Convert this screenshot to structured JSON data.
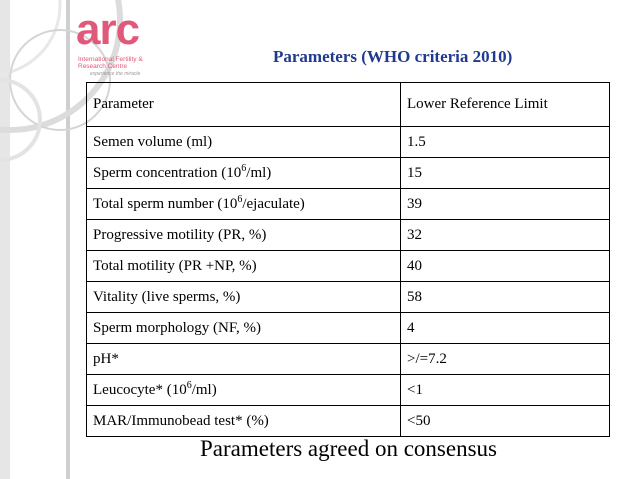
{
  "logo": {
    "mark": "arc",
    "line1": "International Fertility &",
    "line2": "Research Centre",
    "tagline": "experience the miracle"
  },
  "title": "Parameters (WHO criteria 2010)",
  "table": {
    "headers": [
      "Parameter",
      "Lower Reference Limit"
    ],
    "rows": [
      {
        "param": "Semen volume (ml)",
        "limit": "1.5"
      },
      {
        "param_pre": "Sperm concentration (10",
        "param_sup": "6",
        "param_post": "/ml)",
        "limit": "15"
      },
      {
        "param_pre": "Total sperm number (10",
        "param_sup": "6",
        "param_post": "/ejaculate)",
        "limit": "39"
      },
      {
        "param": "Progressive motility (PR, %)",
        "limit": "32"
      },
      {
        "param": "Total motility (PR +NP, %)",
        "limit": "40"
      },
      {
        "param": "Vitality (live sperms, %)",
        "limit": "58"
      },
      {
        "param": "Sperm morphology (NF, %)",
        "limit": "4"
      },
      {
        "param": "pH*",
        "limit": ">/=7.2"
      },
      {
        "param_pre": "Leucocyte* (10",
        "param_sup": "6",
        "param_post": "/ml)",
        "limit": "<1"
      },
      {
        "param": "MAR/Immunobead test* (%)",
        "limit": "<50"
      }
    ]
  },
  "footer": "Parameters agreed on consensus",
  "colors": {
    "title": "#1f3a8f",
    "logo": "#e0597a",
    "decor_ring": "#d8d8d8",
    "decor_bar": "#c9c9c9"
  }
}
